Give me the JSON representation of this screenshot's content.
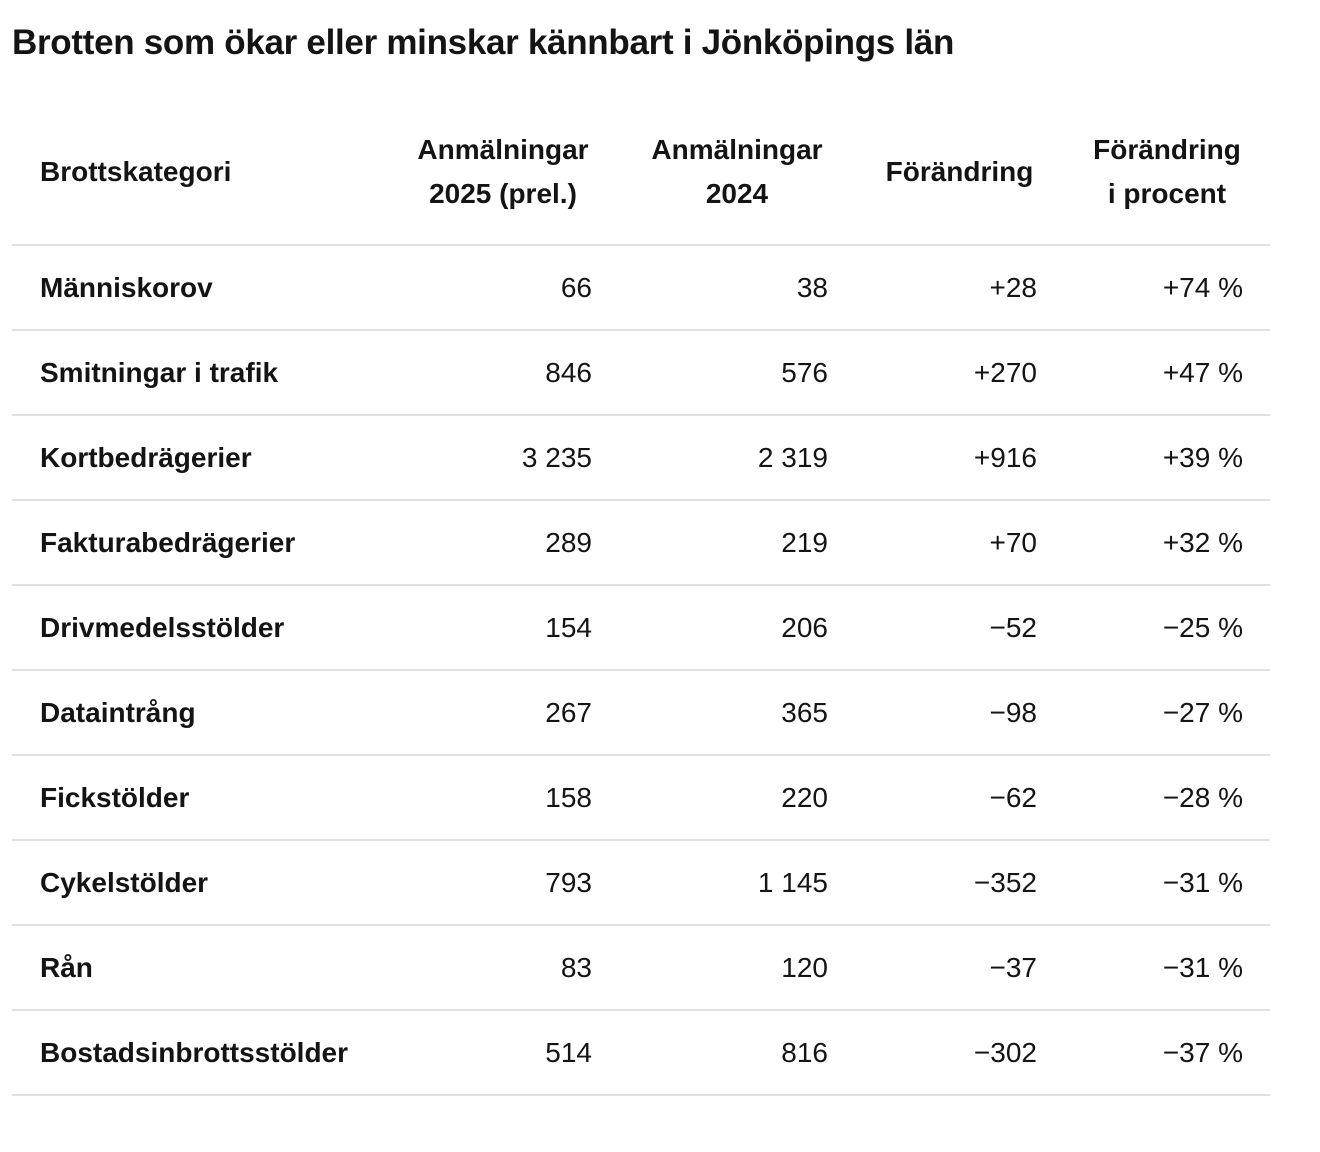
{
  "page": {
    "background": "#ffffff",
    "text_color": "#141414",
    "divider_color": "#e0e0e0"
  },
  "chart_data": {
    "type": "table",
    "title": "Brotten som ökar eller minskar kännbart i Jönköpings län",
    "columns": [
      {
        "label": "Brottskategori",
        "line1": "Brottskategori",
        "line2": ""
      },
      {
        "label": "Anmälningar 2025 (prel.)",
        "line1": "Anmälningar",
        "line2": "2025 (prel.)"
      },
      {
        "label": "Anmälningar 2024",
        "line1": "Anmälningar",
        "line2": "2024"
      },
      {
        "label": "Förändring",
        "line1": "Förändring",
        "line2": ""
      },
      {
        "label": "Förändring i procent",
        "line1": "Förändring",
        "line2": "i procent"
      }
    ],
    "rows": [
      {
        "category": "Människorov",
        "reports_2025": "66",
        "reports_2024": "38",
        "change": "+28",
        "change_percent": "+74 %"
      },
      {
        "category": "Smitningar i trafik",
        "reports_2025": "846",
        "reports_2024": "576",
        "change": "+270",
        "change_percent": "+47 %"
      },
      {
        "category": "Kortbedrägerier",
        "reports_2025": "3 235",
        "reports_2024": "2 319",
        "change": "+916",
        "change_percent": "+39 %"
      },
      {
        "category": "Fakturabedrägerier",
        "reports_2025": "289",
        "reports_2024": "219",
        "change": "+70",
        "change_percent": "+32 %"
      },
      {
        "category": "Drivmedelsstölder",
        "reports_2025": "154",
        "reports_2024": "206",
        "change": "−52",
        "change_percent": "−25 %"
      },
      {
        "category": "Dataintrång",
        "reports_2025": "267",
        "reports_2024": "365",
        "change": "−98",
        "change_percent": "−27 %"
      },
      {
        "category": "Fickstölder",
        "reports_2025": "158",
        "reports_2024": "220",
        "change": "−62",
        "change_percent": "−28 %"
      },
      {
        "category": "Cykelstölder",
        "reports_2025": "793",
        "reports_2024": "1 145",
        "change": "−352",
        "change_percent": "−31 %"
      },
      {
        "category": "Rån",
        "reports_2025": "83",
        "reports_2024": "120",
        "change": "−37",
        "change_percent": "−31 %"
      },
      {
        "category": "Bostadsinbrottsstölder",
        "reports_2025": "514",
        "reports_2024": "816",
        "change": "−302",
        "change_percent": "−37 %"
      }
    ]
  }
}
